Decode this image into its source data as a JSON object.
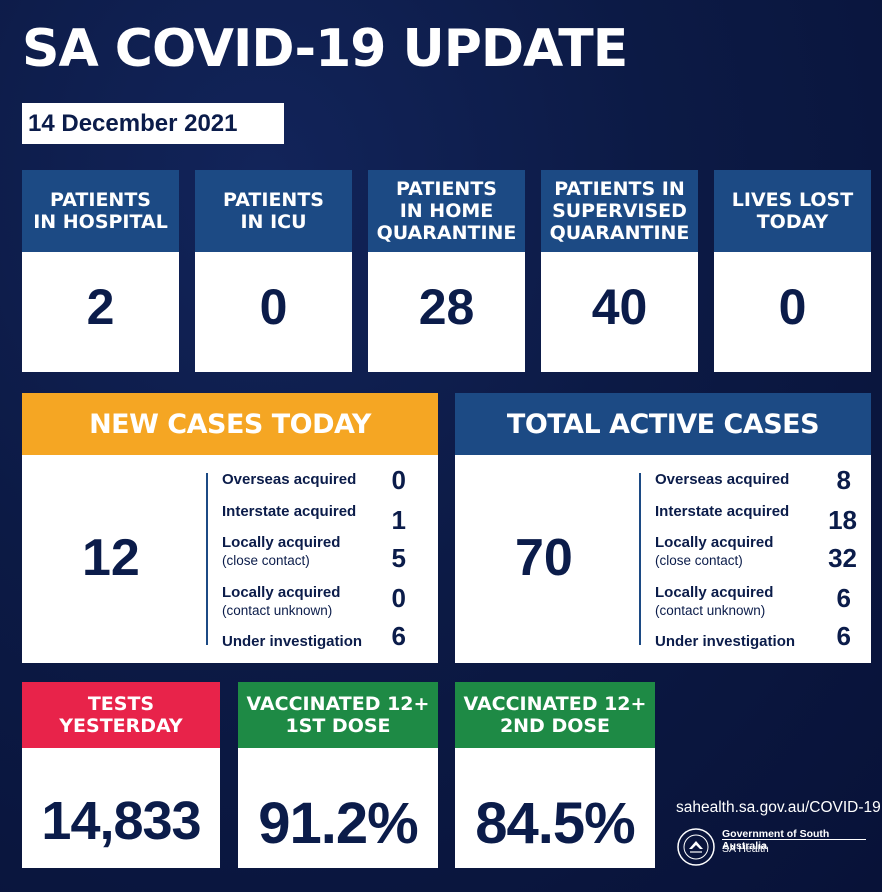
{
  "title": "SA COVID-19 UPDATE",
  "date": "14 December 2021",
  "colors": {
    "blue": "#1c4a84",
    "orange": "#f5a623",
    "red": "#e8234a",
    "green": "#1e8a45",
    "navy_text": "#0b1c4a"
  },
  "top_stats": [
    {
      "label_lines": [
        "PATIENTS",
        "IN HOSPITAL"
      ],
      "value": "2"
    },
    {
      "label_lines": [
        "PATIENTS",
        "IN ICU"
      ],
      "value": "0"
    },
    {
      "label_lines": [
        "PATIENTS",
        "IN HOME",
        "QUARANTINE"
      ],
      "value": "28"
    },
    {
      "label_lines": [
        "PATIENTS IN",
        "SUPERVISED",
        "QUARANTINE"
      ],
      "value": "40"
    },
    {
      "label_lines": [
        "LIVES LOST",
        "TODAY"
      ],
      "value": "0"
    }
  ],
  "new_cases": {
    "heading": "NEW CASES TODAY",
    "total": "12",
    "rows": [
      {
        "label": "Overseas acquired",
        "sub": "",
        "value": "0"
      },
      {
        "label": "Interstate acquired",
        "sub": "",
        "value": "1"
      },
      {
        "label": "Locally acquired",
        "sub": "(close contact)",
        "value": "5"
      },
      {
        "label": "Locally acquired",
        "sub": "(contact unknown)",
        "value": "0"
      },
      {
        "label": "Under investigation",
        "sub": "",
        "value": "6"
      }
    ]
  },
  "active_cases": {
    "heading": "TOTAL ACTIVE CASES",
    "total": "70",
    "rows": [
      {
        "label": "Overseas acquired",
        "sub": "",
        "value": "8"
      },
      {
        "label": "Interstate acquired",
        "sub": "",
        "value": "18"
      },
      {
        "label": "Locally acquired",
        "sub": "(close contact)",
        "value": "32"
      },
      {
        "label": "Locally acquired",
        "sub": "(contact unknown)",
        "value": "6"
      },
      {
        "label": "Under investigation",
        "sub": "",
        "value": "6"
      }
    ]
  },
  "bottom_stats": [
    {
      "label_lines": [
        "TESTS",
        "YESTERDAY"
      ],
      "value": "14,833"
    },
    {
      "label_lines": [
        "VACCINATED 12+",
        "1ST DOSE"
      ],
      "value": "91.2%"
    },
    {
      "label_lines": [
        "VACCINATED 12+",
        "2ND DOSE"
      ],
      "value": "84.5%"
    }
  ],
  "footer": {
    "url": "sahealth.sa.gov.au/COVID-19",
    "gov_name": "Government of South Australia",
    "dept": "SA Health",
    "crest_icon": "sa-government-crest-icon"
  }
}
